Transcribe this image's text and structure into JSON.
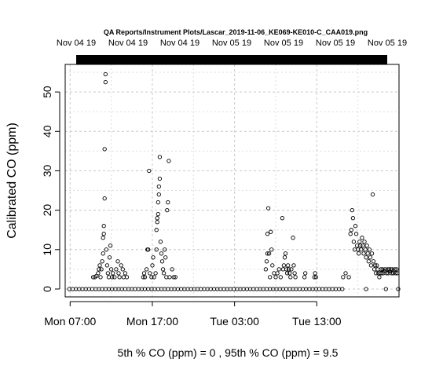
{
  "chart_data": {
    "type": "scatter",
    "title": "QA Reports/Instrument Plots/Lascar_2019-11-06_KE069-KE010-C_CAA019.png",
    "top_tick_labels": [
      "Nov 04 19",
      "Nov 04 19",
      "Nov 04 19",
      "Nov 05 19",
      "Nov 05 19",
      "Nov 05 19",
      "Nov 05 19"
    ],
    "ylabel": "Calibrated CO (ppm)",
    "x_tick_labels": [
      "Mon 07:00",
      "Mon 17:00",
      "Tue 03:00",
      "Tue 13:00"
    ],
    "x_tick_hours": [
      7,
      17,
      27,
      37
    ],
    "xlim_hours": [
      6.4,
      47.0
    ],
    "ylim": [
      -2,
      57
    ],
    "y_ticks": [
      0,
      10,
      20,
      30,
      40,
      50
    ],
    "grid": true,
    "footer": "5th % CO (ppm) =  0 , 95th % CO (ppm)  =  9.5",
    "series": [
      {
        "values": [
          [
            6.9,
            0
          ],
          [
            7.3,
            0
          ],
          [
            7.7,
            0
          ],
          [
            8.1,
            0
          ],
          [
            8.5,
            0
          ],
          [
            8.9,
            0
          ],
          [
            9.3,
            0
          ],
          [
            9.7,
            0
          ],
          [
            10.1,
            0
          ],
          [
            10.5,
            0
          ],
          [
            10.9,
            0
          ],
          [
            11.3,
            0
          ],
          [
            11.7,
            0
          ],
          [
            12.1,
            0
          ],
          [
            12.5,
            0
          ],
          [
            12.9,
            0
          ],
          [
            13.3,
            0
          ],
          [
            13.7,
            0
          ],
          [
            14.1,
            0
          ],
          [
            14.5,
            0
          ],
          [
            14.9,
            0
          ],
          [
            15.3,
            0
          ],
          [
            15.7,
            0
          ],
          [
            16.1,
            0
          ],
          [
            16.5,
            0
          ],
          [
            16.9,
            0
          ],
          [
            17.3,
            0
          ],
          [
            17.7,
            0
          ],
          [
            18.1,
            0
          ],
          [
            18.5,
            0
          ],
          [
            18.9,
            0
          ],
          [
            19.3,
            0
          ],
          [
            19.7,
            0
          ],
          [
            20.1,
            0
          ],
          [
            20.5,
            0
          ],
          [
            20.9,
            0
          ],
          [
            21.3,
            0
          ],
          [
            21.7,
            0
          ],
          [
            22.1,
            0
          ],
          [
            22.5,
            0
          ],
          [
            22.9,
            0
          ],
          [
            23.3,
            0
          ],
          [
            23.7,
            0
          ],
          [
            24.1,
            0
          ],
          [
            24.5,
            0
          ],
          [
            24.9,
            0
          ],
          [
            25.3,
            0
          ],
          [
            25.7,
            0
          ],
          [
            26.1,
            0
          ],
          [
            26.5,
            0
          ],
          [
            26.9,
            0
          ],
          [
            27.3,
            0
          ],
          [
            27.7,
            0
          ],
          [
            28.1,
            0
          ],
          [
            28.5,
            0
          ],
          [
            28.9,
            0
          ],
          [
            29.3,
            0
          ],
          [
            29.7,
            0
          ],
          [
            30.1,
            0
          ],
          [
            30.5,
            0
          ],
          [
            30.9,
            0
          ],
          [
            31.3,
            0
          ],
          [
            31.7,
            0
          ],
          [
            32.1,
            0
          ],
          [
            32.5,
            0
          ],
          [
            32.9,
            0
          ],
          [
            33.3,
            0
          ],
          [
            33.7,
            0
          ],
          [
            34.1,
            0
          ],
          [
            34.5,
            0
          ],
          [
            34.9,
            0
          ],
          [
            35.3,
            0
          ],
          [
            35.7,
            0
          ],
          [
            36.1,
            0
          ],
          [
            36.5,
            0
          ],
          [
            36.9,
            0
          ],
          [
            37.3,
            0
          ],
          [
            37.7,
            0
          ],
          [
            38.1,
            0
          ],
          [
            38.5,
            0
          ],
          [
            38.9,
            0
          ],
          [
            39.3,
            0
          ],
          [
            39.7,
            0
          ],
          [
            40.1,
            0
          ],
          [
            43.0,
            0
          ],
          [
            45.4,
            0
          ],
          [
            9.8,
            3
          ],
          [
            10.0,
            3
          ],
          [
            10.2,
            3.3
          ],
          [
            10.4,
            4
          ],
          [
            10.5,
            5
          ],
          [
            10.6,
            6
          ],
          [
            10.7,
            3
          ],
          [
            10.8,
            5
          ],
          [
            10.9,
            7
          ],
          [
            11.0,
            9
          ],
          [
            11.0,
            13
          ],
          [
            11.1,
            14
          ],
          [
            11.1,
            16
          ],
          [
            11.2,
            23
          ],
          [
            11.2,
            35.5
          ],
          [
            11.3,
            52.5
          ],
          [
            11.3,
            54.5
          ],
          [
            11.4,
            10
          ],
          [
            11.5,
            6
          ],
          [
            11.6,
            4
          ],
          [
            11.7,
            3
          ],
          [
            11.8,
            8
          ],
          [
            11.9,
            11
          ],
          [
            12.0,
            5
          ],
          [
            12.1,
            3
          ],
          [
            12.2,
            4
          ],
          [
            12.4,
            3
          ],
          [
            12.6,
            5
          ],
          [
            12.8,
            7
          ],
          [
            12.9,
            4
          ],
          [
            13.0,
            3
          ],
          [
            13.2,
            6
          ],
          [
            13.4,
            5
          ],
          [
            13.5,
            3
          ],
          [
            13.7,
            4
          ],
          [
            13.9,
            3
          ],
          [
            15.9,
            3
          ],
          [
            16.0,
            4
          ],
          [
            16.1,
            3
          ],
          [
            16.3,
            5
          ],
          [
            16.4,
            10
          ],
          [
            16.5,
            10
          ],
          [
            16.6,
            30
          ],
          [
            16.7,
            4
          ],
          [
            16.9,
            3
          ],
          [
            17.0,
            6
          ],
          [
            17.1,
            8
          ],
          [
            17.2,
            3
          ],
          [
            17.4,
            4
          ],
          [
            17.5,
            10
          ],
          [
            17.5,
            15
          ],
          [
            17.6,
            17
          ],
          [
            17.6,
            18
          ],
          [
            17.7,
            19
          ],
          [
            17.7,
            22
          ],
          [
            17.8,
            24
          ],
          [
            17.8,
            26
          ],
          [
            17.9,
            28
          ],
          [
            17.9,
            33.5
          ],
          [
            18.0,
            12
          ],
          [
            18.1,
            9
          ],
          [
            18.2,
            7
          ],
          [
            18.3,
            5
          ],
          [
            18.4,
            4
          ],
          [
            18.5,
            10
          ],
          [
            18.6,
            8
          ],
          [
            18.7,
            3
          ],
          [
            18.8,
            20
          ],
          [
            18.9,
            22
          ],
          [
            19.0,
            32.5
          ],
          [
            19.1,
            3
          ],
          [
            19.4,
            5
          ],
          [
            19.6,
            3
          ],
          [
            19.8,
            3
          ],
          [
            30.8,
            5
          ],
          [
            30.9,
            7
          ],
          [
            31.0,
            9
          ],
          [
            31.0,
            14
          ],
          [
            31.1,
            20.5
          ],
          [
            31.2,
            9
          ],
          [
            31.3,
            3
          ],
          [
            31.4,
            14.5
          ],
          [
            31.5,
            10
          ],
          [
            31.6,
            6
          ],
          [
            31.8,
            4
          ],
          [
            32.0,
            3
          ],
          [
            32.2,
            4
          ],
          [
            32.4,
            5
          ],
          [
            32.6,
            3
          ],
          [
            32.8,
            18
          ],
          [
            32.9,
            5
          ],
          [
            33.0,
            6
          ],
          [
            33.1,
            8
          ],
          [
            33.2,
            9
          ],
          [
            33.3,
            5
          ],
          [
            33.4,
            4
          ],
          [
            33.5,
            6
          ],
          [
            33.6,
            5
          ],
          [
            33.7,
            4
          ],
          [
            33.8,
            3
          ],
          [
            33.9,
            5
          ],
          [
            34.1,
            13
          ],
          [
            34.2,
            6
          ],
          [
            34.3,
            4
          ],
          [
            34.4,
            3
          ],
          [
            35.5,
            3
          ],
          [
            35.6,
            4
          ],
          [
            36.7,
            3
          ],
          [
            36.8,
            4
          ],
          [
            36.9,
            3
          ],
          [
            40.2,
            3
          ],
          [
            40.5,
            4
          ],
          [
            40.9,
            3
          ],
          [
            41.1,
            14
          ],
          [
            41.2,
            15
          ],
          [
            41.3,
            20
          ],
          [
            41.4,
            18
          ],
          [
            41.5,
            12
          ],
          [
            41.6,
            10
          ],
          [
            41.7,
            16
          ],
          [
            41.8,
            14
          ],
          [
            41.9,
            11
          ],
          [
            42.0,
            10
          ],
          [
            42.1,
            9
          ],
          [
            42.2,
            12
          ],
          [
            42.3,
            11
          ],
          [
            42.4,
            10
          ],
          [
            42.5,
            13
          ],
          [
            42.6,
            11
          ],
          [
            42.7,
            9
          ],
          [
            42.8,
            12
          ],
          [
            42.9,
            10
          ],
          [
            43.0,
            8
          ],
          [
            43.1,
            11
          ],
          [
            43.2,
            9
          ],
          [
            43.3,
            7
          ],
          [
            43.4,
            10
          ],
          [
            43.5,
            8
          ],
          [
            43.6,
            6
          ],
          [
            43.7,
            9
          ],
          [
            43.8,
            24
          ],
          [
            43.9,
            7
          ],
          [
            44.0,
            5
          ],
          [
            44.1,
            6
          ],
          [
            44.2,
            4
          ],
          [
            44.3,
            6
          ],
          [
            44.4,
            5
          ],
          [
            44.5,
            4
          ],
          [
            44.6,
            3
          ],
          [
            44.7,
            4
          ],
          [
            44.8,
            5
          ],
          [
            44.9,
            4
          ],
          [
            45.0,
            5
          ],
          [
            45.1,
            4
          ],
          [
            45.2,
            4.5
          ],
          [
            45.3,
            5
          ],
          [
            45.5,
            4
          ],
          [
            45.6,
            5
          ],
          [
            45.7,
            4
          ],
          [
            45.8,
            5
          ],
          [
            45.9,
            4.5
          ],
          [
            46.0,
            5
          ],
          [
            46.1,
            4
          ],
          [
            46.2,
            5
          ],
          [
            46.3,
            4
          ],
          [
            46.5,
            5
          ],
          [
            46.6,
            4
          ],
          [
            46.7,
            5
          ],
          [
            46.8,
            4
          ],
          [
            46.9,
            0
          ]
        ]
      }
    ]
  }
}
